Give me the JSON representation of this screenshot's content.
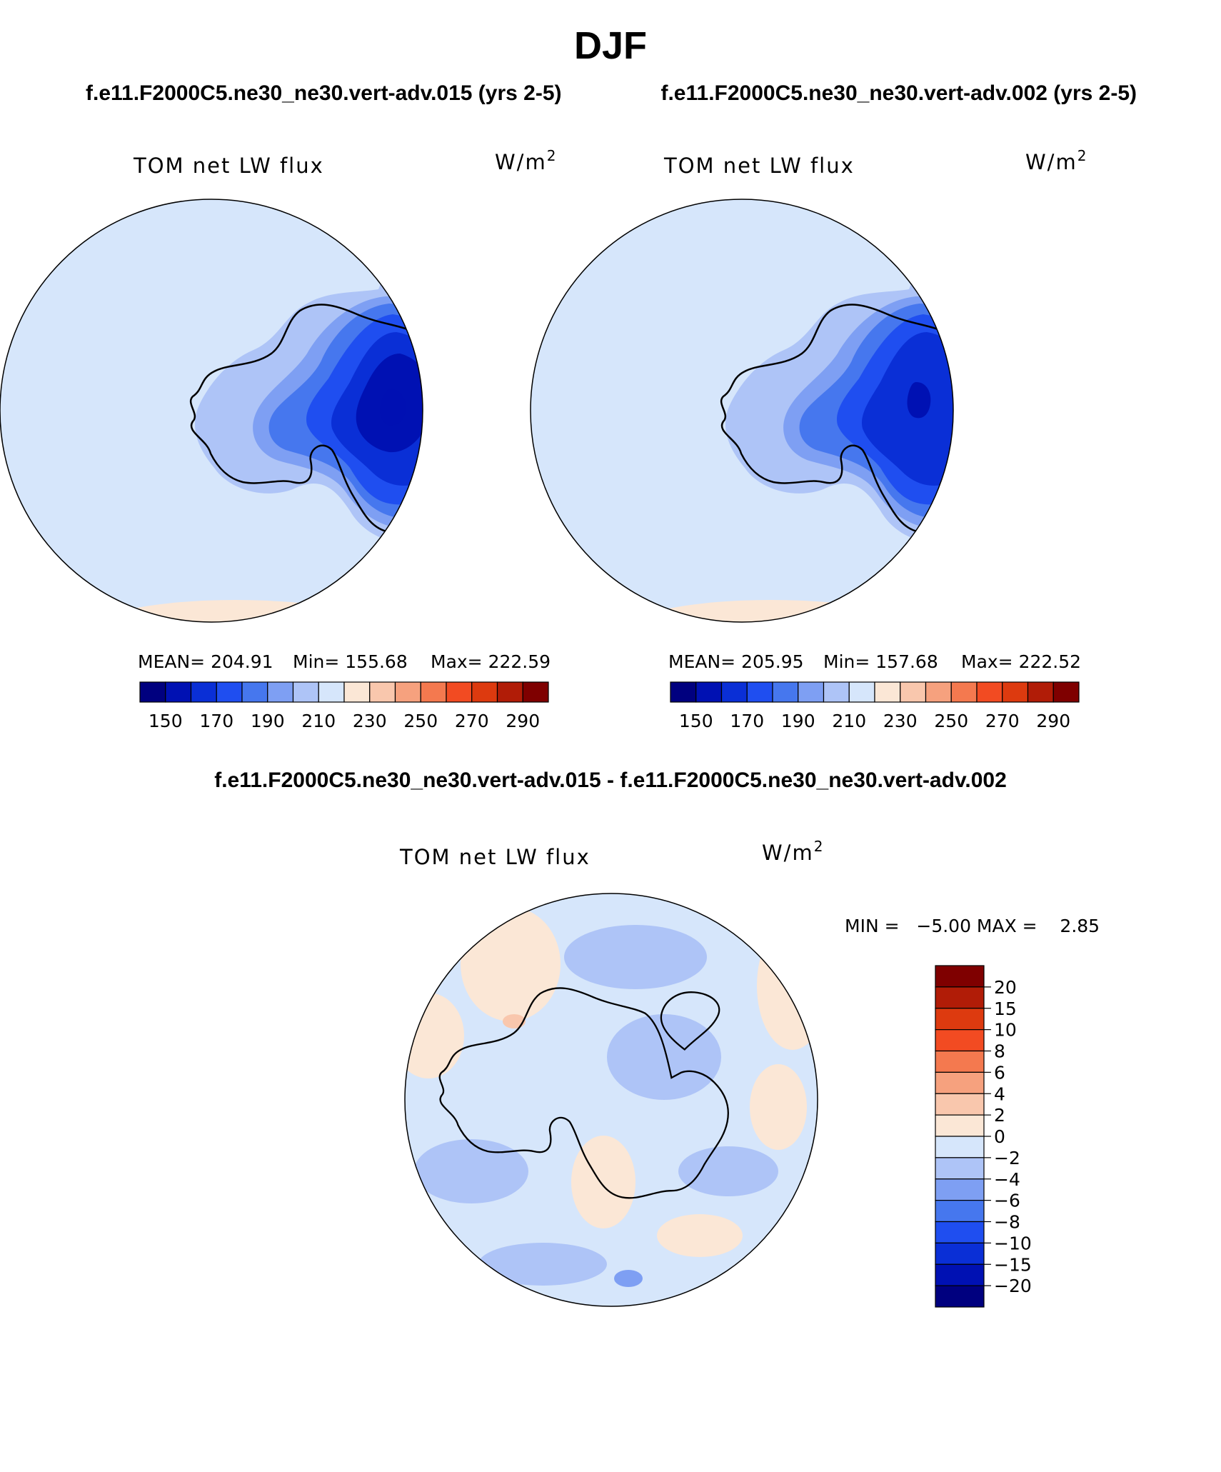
{
  "page": {
    "title": "DJF",
    "case_a": "f.e11.F2000C5.ne30_ne30.vert-adv.015 (yrs 2-5)",
    "case_b": "f.e11.F2000C5.ne30_ne30.vert-adv.002 (yrs 2-5)",
    "diff_title": "f.e11.F2000C5.ne30_ne30.vert-adv.015 - f.e11.F2000C5.ne30_ne30.vert-adv.002"
  },
  "chart_data": [
    {
      "type": "heatmap",
      "projection": "south-polar-stereographic",
      "title": "TOM net LW flux",
      "units": "W/m",
      "units_exp": "2",
      "stats": {
        "mean": "MEAN= 204.91",
        "min": "Min= 155.68",
        "max": "Max= 222.59"
      },
      "levels": [
        150,
        160,
        170,
        180,
        190,
        200,
        210,
        220,
        230,
        240,
        250,
        260,
        270,
        280,
        290
      ],
      "tick_labels": [
        "150",
        "170",
        "190",
        "210",
        "230",
        "250",
        "270",
        "290"
      ],
      "colors": [
        "#00007f",
        "#0011b3",
        "#0a2fd6",
        "#1f4ef0",
        "#4677ee",
        "#7e9ff3",
        "#aec4f7",
        "#d6e6fb",
        "#fbe7d6",
        "#f9c7ad",
        "#f6a17e",
        "#f4794f",
        "#f24b22",
        "#dd3a0f",
        "#b11c07",
        "#7f0000"
      ],
      "field_colors": {
        "background": "#d6e6fb",
        "ring1": "#aec4f7",
        "ring2": "#7e9ff3",
        "ring3": "#4677ee",
        "ring4": "#1f4ef0",
        "ring5": "#0a2fd6",
        "core": "#0011b3",
        "edge": "#fbe7d6"
      }
    },
    {
      "type": "heatmap",
      "projection": "south-polar-stereographic",
      "title": "TOM net LW flux",
      "units": "W/m",
      "units_exp": "2",
      "stats": {
        "mean": "MEAN= 205.95",
        "min": "Min= 157.68",
        "max": "Max= 222.52"
      },
      "levels": [
        150,
        160,
        170,
        180,
        190,
        200,
        210,
        220,
        230,
        240,
        250,
        260,
        270,
        280,
        290
      ],
      "tick_labels": [
        "150",
        "170",
        "190",
        "210",
        "230",
        "250",
        "270",
        "290"
      ],
      "colors": [
        "#00007f",
        "#0011b3",
        "#0a2fd6",
        "#1f4ef0",
        "#4677ee",
        "#7e9ff3",
        "#aec4f7",
        "#d6e6fb",
        "#fbe7d6",
        "#f9c7ad",
        "#f6a17e",
        "#f4794f",
        "#f24b22",
        "#dd3a0f",
        "#b11c07",
        "#7f0000"
      ],
      "field_colors": {
        "background": "#d6e6fb",
        "ring1": "#aec4f7",
        "ring2": "#7e9ff3",
        "ring3": "#4677ee",
        "ring4": "#1f4ef0",
        "ring5": "#0a2fd6",
        "core": "#0011b3",
        "edge": "#fbe7d6"
      }
    },
    {
      "type": "heatmap",
      "projection": "south-polar-stereographic",
      "title": "TOM net LW flux",
      "units": "W/m",
      "units_exp": "2",
      "stats": {
        "minmax": "MIN =   −5.00 MAX =    2.85"
      },
      "levels": [
        -20,
        -15,
        -10,
        -8,
        -6,
        -4,
        -2,
        0,
        2,
        4,
        6,
        8,
        10,
        15,
        20
      ],
      "tick_labels": [
        "20",
        "15",
        "10",
        "8",
        "6",
        "4",
        "2",
        "0",
        "−2",
        "−4",
        "−6",
        "−8",
        "−10",
        "−15",
        "−20"
      ],
      "colors_top_to_bottom": [
        "#7f0000",
        "#b11c07",
        "#dd3a0f",
        "#f24b22",
        "#f4794f",
        "#f6a17e",
        "#f9c7ad",
        "#fbe7d6",
        "#d6e6fb",
        "#aec4f7",
        "#7e9ff3",
        "#4677ee",
        "#1f4ef0",
        "#0a2fd6",
        "#0011b3",
        "#00007f"
      ],
      "field_colors": {
        "background": "#d6e6fb",
        "neg": "#aec4f7",
        "neg2": "#7e9ff3",
        "pos": "#fbe7d6",
        "pos2": "#f9c7ad"
      }
    }
  ]
}
